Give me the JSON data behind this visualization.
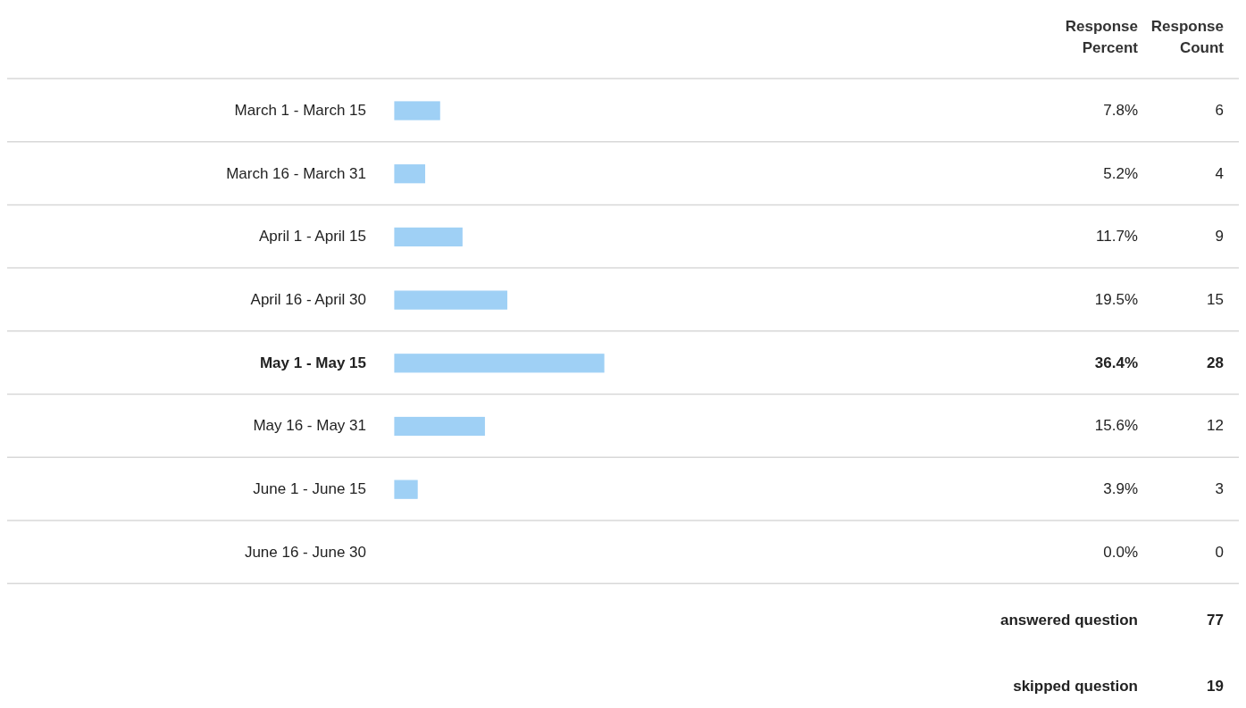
{
  "chart_data": {
    "type": "bar",
    "orientation": "horizontal",
    "categories": [
      "March 1 - March 15",
      "March 16 - March 31",
      "April 1 - April 15",
      "April 16 - April 30",
      "May 1 - May 15",
      "May 16 - May 31",
      "June 1 - June 15",
      "June 16 - June 30"
    ],
    "series": [
      {
        "name": "Response Percent",
        "color": "#9fd0f5",
        "values": [
          7.8,
          5.2,
          11.7,
          19.5,
          36.4,
          15.6,
          3.9,
          0.0
        ],
        "value_labels": [
          "7.8%",
          "5.2%",
          "11.7%",
          "19.5%",
          "36.4%",
          "15.6%",
          "3.9%",
          "0.0%"
        ]
      }
    ],
    "annotations": [
      "Response Count",
      "6",
      "4",
      "9",
      "15",
      "28",
      "12",
      "3",
      "0",
      "answered question",
      "77",
      "skipped question",
      "19"
    ]
  }
}
